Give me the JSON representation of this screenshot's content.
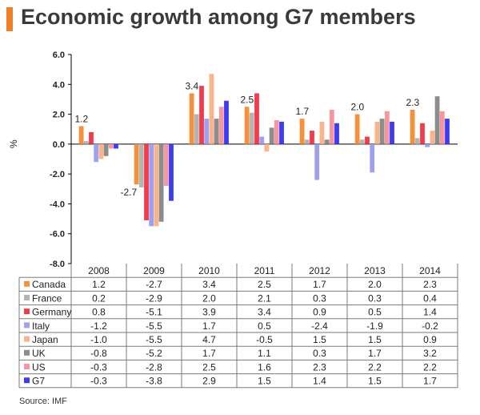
{
  "title": "Economic growth among G7 members",
  "source": "Source: IMF",
  "chart_data": {
    "type": "bar",
    "title": "Economic growth among G7 members",
    "ylabel": "%",
    "xlabel": "",
    "ylim": [
      -8,
      6
    ],
    "yticks": [
      "6.0",
      "4.0",
      "2.0",
      "0.0",
      "-2.0",
      "-4.0",
      "-6.0",
      "-8.0"
    ],
    "categories": [
      "2008",
      "2009",
      "2010",
      "2011",
      "2012",
      "2013",
      "2014"
    ],
    "grid": false,
    "legend": "data-table-below",
    "series": [
      {
        "name": "Canada",
        "color": "#f5913c",
        "values": [
          1.2,
          -2.7,
          3.4,
          2.5,
          1.7,
          2.0,
          2.3
        ],
        "labels": [
          "1.2",
          "-2.7",
          "3.4",
          "2.5",
          "1.7",
          "2.0",
          "2.3"
        ]
      },
      {
        "name": "France",
        "color": "#b4b4b4",
        "values": [
          0.2,
          -2.9,
          2.0,
          2.1,
          0.3,
          0.3,
          0.4
        ],
        "labels": [
          "0.2",
          "-2.9",
          "2.0",
          "2.1",
          "0.3",
          "0.3",
          "0.4"
        ]
      },
      {
        "name": "Germany",
        "color": "#f03c4b",
        "values": [
          0.8,
          -5.1,
          3.9,
          3.4,
          0.9,
          0.5,
          1.4
        ],
        "labels": [
          "0.8",
          "-5.1",
          "3.9",
          "3.4",
          "0.9",
          "0.5",
          "1.4"
        ]
      },
      {
        "name": "Italy",
        "color": "#a0a0f0",
        "values": [
          -1.2,
          -5.5,
          1.7,
          0.5,
          -2.4,
          -1.9,
          -0.2
        ],
        "labels": [
          "-1.2",
          "-5.5",
          "1.7",
          "0.5",
          "-2.4",
          "-1.9",
          "-0.2"
        ]
      },
      {
        "name": "Japan",
        "color": "#fab48c",
        "values": [
          -1.0,
          -5.5,
          4.7,
          -0.5,
          1.5,
          1.5,
          0.9
        ],
        "labels": [
          "-1.0",
          "-5.5",
          "4.7",
          "-0.5",
          "1.5",
          "1.5",
          "0.9"
        ]
      },
      {
        "name": "UK",
        "color": "#8c8c8c",
        "values": [
          -0.8,
          -5.2,
          1.7,
          1.1,
          0.3,
          1.7,
          3.2
        ],
        "labels": [
          "-0.8",
          "-5.2",
          "1.7",
          "1.1",
          "0.3",
          "1.7",
          "3.2"
        ]
      },
      {
        "name": "US",
        "color": "#f596a0",
        "values": [
          -0.3,
          -2.8,
          2.5,
          1.6,
          2.3,
          2.2,
          2.2
        ],
        "labels": [
          "-0.3",
          "-2.8",
          "2.5",
          "1.6",
          "2.3",
          "2.2",
          "2.2"
        ]
      },
      {
        "name": "G7",
        "color": "#3c3cf0",
        "values": [
          -0.3,
          -3.8,
          2.9,
          1.5,
          1.4,
          1.5,
          1.7
        ],
        "labels": [
          "-0.3",
          "-3.8",
          "2.9",
          "1.5",
          "1.4",
          "1.5",
          "1.7"
        ]
      }
    ],
    "annotations": [
      {
        "category": "2008",
        "text": "1.2"
      },
      {
        "category": "2009",
        "text": "-2.7"
      },
      {
        "category": "2010",
        "text": "3.4"
      },
      {
        "category": "2011",
        "text": "2.5"
      },
      {
        "category": "2012",
        "text": "1.7"
      },
      {
        "category": "2013",
        "text": "2.0"
      },
      {
        "category": "2014",
        "text": "2.3"
      }
    ]
  }
}
